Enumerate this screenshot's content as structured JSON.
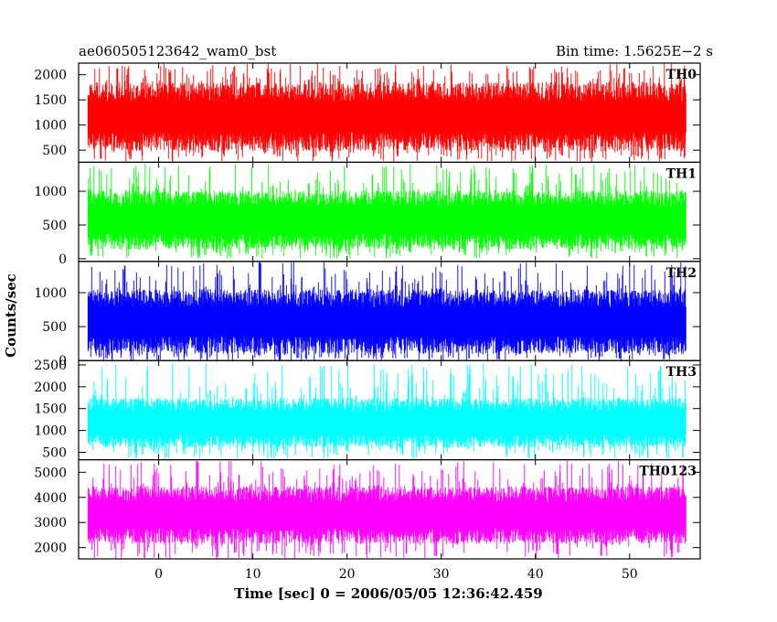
{
  "header": {
    "left_title": "ae060505123642_wam0_bst",
    "right_title": "Bin time: 1.5625E−2 s"
  },
  "chart_data": {
    "type": "line",
    "title": "ae060505123642_wam0_bst",
    "bin_time": "Bin time: 1.5625E−2 s",
    "xlabel": "Time [sec] 0 = 2006/05/05 12:36:42.459",
    "ylabel": "Counts/sec",
    "xlim": [
      -8.5,
      57.5
    ],
    "x_ticks": [
      0,
      10,
      20,
      30,
      40,
      50
    ],
    "x_tick_labels": [
      "0",
      "10",
      "20",
      "30",
      "40",
      "50"
    ],
    "data_x_range": [
      -7.5,
      56
    ],
    "panels": [
      {
        "label": "TH0",
        "color": "#ff0000",
        "ylim": [
          260,
          2230
        ],
        "ticks": [
          500,
          1000,
          1500,
          2000
        ],
        "tick_labels": [
          "500",
          "1000",
          "1500",
          "2000"
        ],
        "band": {
          "low": 480,
          "high": 1850
        },
        "extremes": {
          "min": 270,
          "max": 2220
        }
      },
      {
        "label": "TH1",
        "color": "#00ff00",
        "ylim": [
          -40,
          1430
        ],
        "ticks": [
          0,
          500,
          1000
        ],
        "tick_labels": [
          "0",
          "500",
          "1000"
        ],
        "band": {
          "low": 140,
          "high": 1010
        },
        "extremes": {
          "min": 0,
          "max": 1420
        }
      },
      {
        "label": "TH2",
        "color": "#0000ff",
        "ylim": [
          0,
          1460
        ],
        "ticks": [
          0,
          500,
          1000
        ],
        "tick_labels": [
          "0",
          "500",
          "1000"
        ],
        "band": {
          "low": 100,
          "high": 1050
        },
        "extremes": {
          "min": 0,
          "max": 1450
        }
      },
      {
        "label": "TH3",
        "color": "#00ffff",
        "ylim": [
          330,
          2600
        ],
        "ticks": [
          500,
          1000,
          1500,
          2000,
          2500
        ],
        "tick_labels": [
          "500",
          "1000",
          "1500",
          "2000",
          "2500"
        ],
        "band": {
          "low": 600,
          "high": 1750
        },
        "extremes": {
          "min": 340,
          "max": 2580
        }
      },
      {
        "label": "TH0123",
        "color": "#ff00ff",
        "ylim": [
          1550,
          5500
        ],
        "ticks": [
          2000,
          3000,
          4000,
          5000
        ],
        "tick_labels": [
          "2000",
          "3000",
          "4000",
          "5000"
        ],
        "band": {
          "low": 2150,
          "high": 4450
        },
        "extremes": {
          "min": 1560,
          "max": 5450
        }
      }
    ]
  }
}
